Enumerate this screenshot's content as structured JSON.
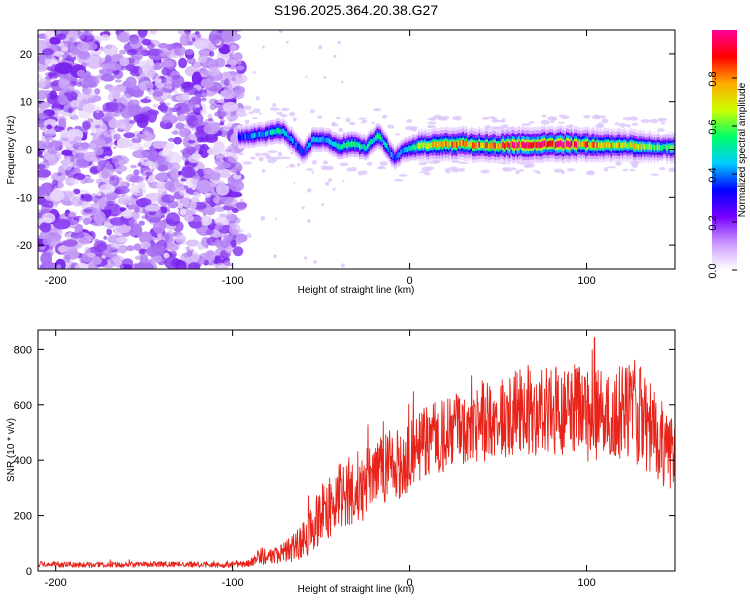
{
  "title": "S196.2025.364.20.38.G27",
  "chart_data": [
    {
      "type": "heatmap",
      "xlabel": "Height of straight line (km)",
      "ylabel": "Frequency (Hz)",
      "xlim": [
        -210,
        150
      ],
      "ylim": [
        -25,
        25
      ],
      "xticks": [
        -200,
        -100,
        0,
        100
      ],
      "xtick_labels": [
        "-200",
        "-100",
        "0",
        "100"
      ],
      "yticks": [
        -20,
        -10,
        0,
        10,
        20
      ],
      "ytick_labels": [
        "-20",
        "-10",
        "0",
        "10",
        "20"
      ],
      "noise_region_x": [
        -210,
        -95
      ],
      "signal_ridge": [
        {
          "x": -97,
          "f": 2.5,
          "a": 0.35
        },
        {
          "x": -90,
          "f": 2.9,
          "a": 0.4
        },
        {
          "x": -80,
          "f": 3.5,
          "a": 0.45
        },
        {
          "x": -72,
          "f": 3.9,
          "a": 0.5
        },
        {
          "x": -65,
          "f": 1.2,
          "a": 0.4
        },
        {
          "x": -60,
          "f": -0.8,
          "a": 0.35
        },
        {
          "x": -55,
          "f": 2.2,
          "a": 0.45
        },
        {
          "x": -48,
          "f": 2.0,
          "a": 0.45
        },
        {
          "x": -40,
          "f": 0.6,
          "a": 0.5
        },
        {
          "x": -32,
          "f": 1.2,
          "a": 0.55
        },
        {
          "x": -25,
          "f": 0.4,
          "a": 0.5
        },
        {
          "x": -18,
          "f": 3.0,
          "a": 0.5
        },
        {
          "x": -13,
          "f": 0.5,
          "a": 0.45
        },
        {
          "x": -9,
          "f": -1.8,
          "a": 0.4
        },
        {
          "x": -4,
          "f": -0.3,
          "a": 0.45
        },
        {
          "x": 5,
          "f": 0.8,
          "a": 0.6
        },
        {
          "x": 15,
          "f": 1.0,
          "a": 0.75
        },
        {
          "x": 30,
          "f": 1.2,
          "a": 0.75
        },
        {
          "x": 45,
          "f": 0.8,
          "a": 0.8
        },
        {
          "x": 60,
          "f": 0.9,
          "a": 0.9
        },
        {
          "x": 75,
          "f": 1.1,
          "a": 0.95
        },
        {
          "x": 90,
          "f": 1.1,
          "a": 0.9
        },
        {
          "x": 100,
          "f": 1.0,
          "a": 0.85
        },
        {
          "x": 110,
          "f": 0.9,
          "a": 0.75
        },
        {
          "x": 125,
          "f": 0.8,
          "a": 0.7
        },
        {
          "x": 140,
          "f": 0.4,
          "a": 0.6
        },
        {
          "x": 150,
          "f": 0.5,
          "a": 0.55
        }
      ],
      "colorbar": {
        "label": "Normalized spectral amplitude",
        "range": [
          0,
          1
        ],
        "ticks": [
          0.0,
          0.2,
          0.4,
          0.6,
          0.8
        ],
        "tick_labels": [
          "0.0",
          "0.2",
          "0.4",
          "0.6",
          "0.8"
        ],
        "colors": [
          "#ffffff",
          "#cc99ff",
          "#7700ff",
          "#0000ff",
          "#00ccff",
          "#00ff66",
          "#ccff00",
          "#ffaa00",
          "#ff0000",
          "#ff0099"
        ]
      }
    },
    {
      "type": "line",
      "xlabel": "Height of straight line (km)",
      "ylabel": "SNR (10 * v/v)",
      "xlim": [
        -210,
        150
      ],
      "ylim": [
        0,
        870
      ],
      "xticks": [
        -200,
        -100,
        0,
        100
      ],
      "xtick_labels": [
        "-200",
        "-100",
        "0",
        "100"
      ],
      "yticks": [
        0,
        200,
        400,
        600,
        800
      ],
      "ytick_labels": [
        "0",
        "200",
        "400",
        "600",
        "800"
      ],
      "color": "#e8231a",
      "series": [
        {
          "name": "SNR",
          "x": [
            -210,
            -180,
            -150,
            -120,
            -100,
            -90,
            -85,
            -80,
            -70,
            -60,
            -50,
            -40,
            -30,
            -20,
            -10,
            0,
            10,
            20,
            30,
            40,
            50,
            60,
            70,
            80,
            90,
            100,
            110,
            120,
            130,
            140,
            150
          ],
          "y": [
            25,
            22,
            24,
            23,
            22,
            28,
            60,
            50,
            70,
            110,
            200,
            270,
            300,
            330,
            380,
            420,
            470,
            490,
            520,
            540,
            560,
            570,
            580,
            575,
            590,
            560,
            580,
            570,
            560,
            470,
            410
          ],
          "spread": [
            10,
            10,
            10,
            10,
            10,
            12,
            40,
            25,
            40,
            70,
            110,
            120,
            130,
            130,
            140,
            130,
            130,
            130,
            140,
            150,
            150,
            160,
            170,
            160,
            170,
            170,
            170,
            170,
            190,
            170,
            120
          ]
        }
      ]
    }
  ]
}
